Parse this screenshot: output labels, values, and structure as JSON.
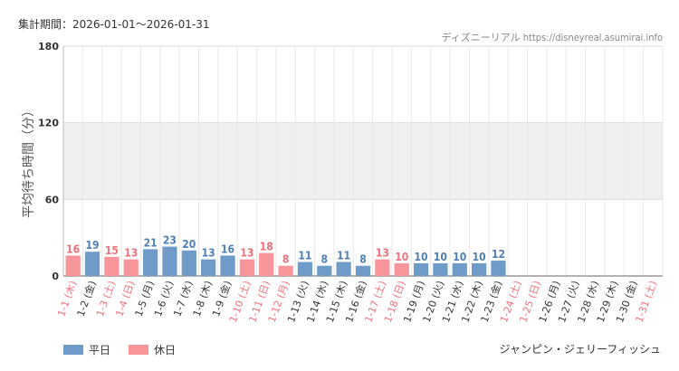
{
  "header": {
    "period": "集計期間：2026-01-01〜2026-01-31",
    "source": "ディズニーリアル https://disneyreal.asumirai.info"
  },
  "legend": {
    "weekday_label": "平日",
    "holiday_label": "休日"
  },
  "attraction": "ジャンピン・ジェリーフィッシュ",
  "colors": {
    "weekday": "#6f9bc9",
    "holiday": "#f7959a",
    "weekday_text": "#4f7fb3",
    "holiday_text": "#f0707a",
    "band": "#efefef"
  },
  "chart_data": {
    "type": "bar",
    "ylabel": "平均待ち時間（分）",
    "ylim": [
      0,
      180
    ],
    "yticks": [
      0,
      60,
      120,
      180
    ],
    "shaded_band": [
      60,
      120
    ],
    "categories": [
      "1-1 (木)",
      "1-2 (金)",
      "1-3 (土)",
      "1-4 (日)",
      "1-5 (月)",
      "1-6 (火)",
      "1-7 (水)",
      "1-8 (木)",
      "1-9 (金)",
      "1-10 (土)",
      "1-11 (日)",
      "1-12 (月)",
      "1-13 (火)",
      "1-14 (水)",
      "1-15 (木)",
      "1-16 (金)",
      "1-17 (土)",
      "1-18 (日)",
      "1-19 (月)",
      "1-20 (火)",
      "1-21 (水)",
      "1-22 (木)",
      "1-23 (金)",
      "1-24 (土)",
      "1-25 (日)",
      "1-26 (月)",
      "1-27 (火)",
      "1-28 (水)",
      "1-29 (木)",
      "1-30 (金)",
      "1-31 (土)"
    ],
    "values": [
      16,
      19,
      15,
      13,
      21,
      23,
      20,
      13,
      16,
      13,
      18,
      8,
      11,
      8,
      11,
      8,
      13,
      10,
      10,
      10,
      10,
      10,
      12,
      null,
      null,
      null,
      null,
      null,
      null,
      null,
      null
    ],
    "day_type": [
      "holiday",
      "weekday",
      "holiday",
      "holiday",
      "weekday",
      "weekday",
      "weekday",
      "weekday",
      "weekday",
      "holiday",
      "holiday",
      "holiday",
      "weekday",
      "weekday",
      "weekday",
      "weekday",
      "holiday",
      "holiday",
      "weekday",
      "weekday",
      "weekday",
      "weekday",
      "weekday",
      "holiday",
      "holiday",
      "weekday",
      "weekday",
      "weekday",
      "weekday",
      "weekday",
      "holiday"
    ]
  }
}
